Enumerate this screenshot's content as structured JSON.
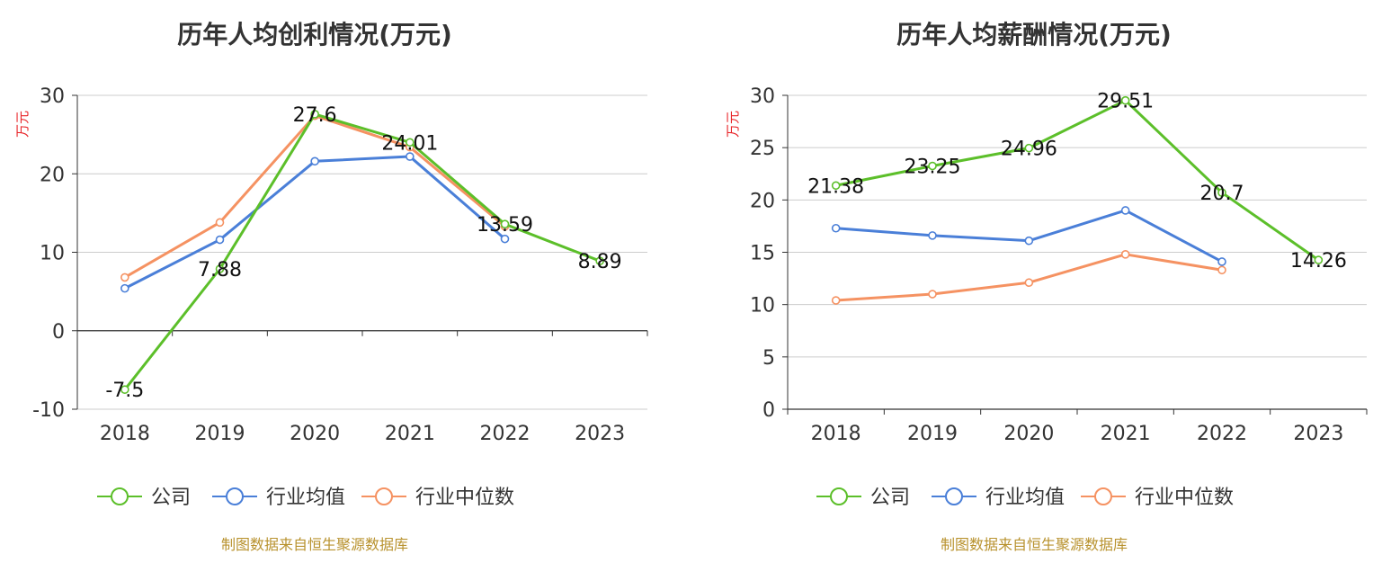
{
  "colors": {
    "company": "#5cbf2a",
    "avg": "#4a7fd8",
    "median": "#f59262"
  },
  "chart_data": [
    {
      "type": "line",
      "title": "历年人均创利情况(万元)",
      "unit": "万元",
      "categories": [
        "2018",
        "2019",
        "2020",
        "2021",
        "2022",
        "2023"
      ],
      "ylim": [
        -10,
        30
      ],
      "yticks": [
        -10,
        0,
        10,
        20,
        30
      ],
      "ytick_labels": [
        "-10",
        "0",
        "10",
        "20",
        "30"
      ],
      "series": [
        {
          "name": "公司",
          "values": [
            -7.5,
            7.88,
            27.6,
            24.01,
            13.59,
            8.89
          ],
          "labels": [
            "-7.5",
            "7.88",
            "27.6",
            "24.01",
            "13.59",
            "8.89"
          ]
        },
        {
          "name": "行业均值",
          "values": [
            5.4,
            11.6,
            21.6,
            22.2,
            11.7,
            null
          ]
        },
        {
          "name": "行业中位数",
          "values": [
            6.8,
            13.8,
            27.4,
            23.4,
            13.3,
            null
          ]
        }
      ],
      "legend": [
        "公司",
        "行业均值",
        "行业中位数"
      ],
      "source": "制图数据来自恒生聚源数据库"
    },
    {
      "type": "line",
      "title": "历年人均薪酬情况(万元)",
      "unit": "万元",
      "categories": [
        "2018",
        "2019",
        "2020",
        "2021",
        "2022",
        "2023"
      ],
      "ylim": [
        0,
        30
      ],
      "yticks": [
        0,
        5,
        10,
        15,
        20,
        25,
        30
      ],
      "ytick_labels": [
        "0",
        "5",
        "10",
        "15",
        "20",
        "25",
        "30"
      ],
      "series": [
        {
          "name": "公司",
          "values": [
            21.38,
            23.25,
            24.96,
            29.51,
            20.7,
            14.26
          ],
          "labels": [
            "21.38",
            "23.25",
            "24.96",
            "29.51",
            "20.7",
            "14.26"
          ]
        },
        {
          "name": "行业均值",
          "values": [
            17.3,
            16.6,
            16.1,
            19.0,
            14.1,
            null
          ]
        },
        {
          "name": "行业中位数",
          "values": [
            10.4,
            11.0,
            12.1,
            14.8,
            13.3,
            null
          ]
        }
      ],
      "legend": [
        "公司",
        "行业均值",
        "行业中位数"
      ],
      "source": "制图数据来自恒生聚源数据库"
    }
  ]
}
